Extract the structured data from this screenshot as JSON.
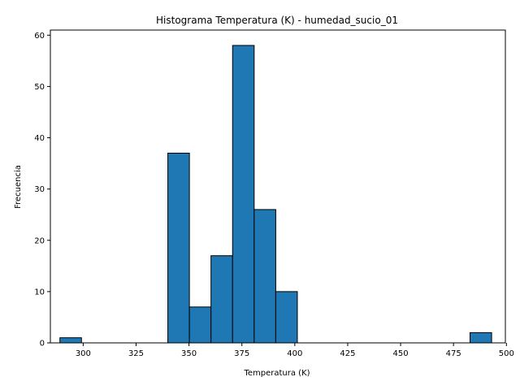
{
  "chart_data": {
    "type": "bar",
    "title": "Histograma Temperatura (K) - humedad_sucio_01",
    "xlabel": "Temperatura (K)",
    "ylabel": "Frecuencia",
    "xlim": [
      284.5,
      499.5
    ],
    "ylim": [
      0,
      61
    ],
    "xticks": [
      300,
      325,
      350,
      375,
      400,
      425,
      450,
      475,
      500
    ],
    "yticks": [
      0,
      10,
      20,
      30,
      40,
      50,
      60
    ],
    "grid": false,
    "legend": "none",
    "bar_color": "#1f77b4",
    "edge_color": "#000000",
    "bins": [
      {
        "x0": 289.0,
        "x1": 299.2,
        "count": 1
      },
      {
        "x0": 299.2,
        "x1": 309.4,
        "count": 0
      },
      {
        "x0": 309.4,
        "x1": 319.6,
        "count": 0
      },
      {
        "x0": 319.6,
        "x1": 329.8,
        "count": 0
      },
      {
        "x0": 329.8,
        "x1": 340.0,
        "count": 0
      },
      {
        "x0": 340.0,
        "x1": 350.2,
        "count": 37
      },
      {
        "x0": 350.2,
        "x1": 360.4,
        "count": 7
      },
      {
        "x0": 360.4,
        "x1": 370.6,
        "count": 17
      },
      {
        "x0": 370.6,
        "x1": 380.8,
        "count": 58
      },
      {
        "x0": 380.8,
        "x1": 391.0,
        "count": 26
      },
      {
        "x0": 391.0,
        "x1": 401.2,
        "count": 10
      },
      {
        "x0": 401.2,
        "x1": 411.4,
        "count": 0
      },
      {
        "x0": 411.4,
        "x1": 421.6,
        "count": 0
      },
      {
        "x0": 421.6,
        "x1": 431.8,
        "count": 0
      },
      {
        "x0": 431.8,
        "x1": 442.0,
        "count": 0
      },
      {
        "x0": 442.0,
        "x1": 452.2,
        "count": 0
      },
      {
        "x0": 452.2,
        "x1": 462.4,
        "count": 0
      },
      {
        "x0": 462.4,
        "x1": 472.6,
        "count": 0
      },
      {
        "x0": 472.6,
        "x1": 482.8,
        "count": 0
      },
      {
        "x0": 482.8,
        "x1": 493.0,
        "count": 2
      }
    ]
  }
}
